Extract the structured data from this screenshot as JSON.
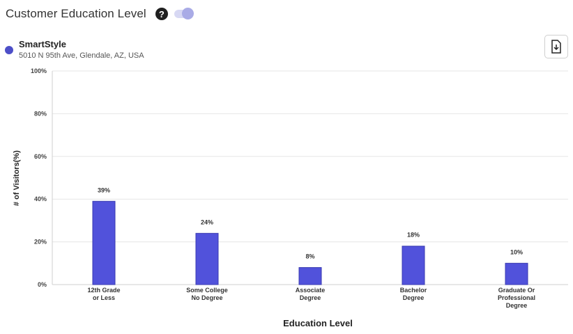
{
  "header": {
    "title": "Customer Education Level",
    "help_icon": "help-circle-icon",
    "toggle_state": "on"
  },
  "store": {
    "name": "SmartStyle",
    "address": "5010 N 95th Ave, Glendale, AZ, USA",
    "dot_color": "#4d4fc8"
  },
  "download_icon": "download-file-icon",
  "chart_data": {
    "type": "bar",
    "categories": [
      [
        "12th Grade",
        "or Less"
      ],
      [
        "Some College",
        "No Degree"
      ],
      [
        "Associate",
        "Degree"
      ],
      [
        "Bachelor",
        "Degree"
      ],
      [
        "Graduate Or",
        "Professional",
        "Degree"
      ]
    ],
    "values": [
      39,
      24,
      8,
      18,
      10
    ],
    "data_labels": [
      "39%",
      "24%",
      "8%",
      "18%",
      "10%"
    ],
    "xlabel": "Education Level",
    "ylabel": "# of Visitors(%)",
    "ylim": [
      0,
      100
    ],
    "yticks": [
      {
        "value": 0,
        "label": "0%"
      },
      {
        "value": 20,
        "label": "20%"
      },
      {
        "value": 40,
        "label": "40%"
      },
      {
        "value": 60,
        "label": "60%"
      },
      {
        "value": 80,
        "label": "80%"
      },
      {
        "value": 100,
        "label": "100%"
      }
    ],
    "grid": true,
    "bar_color": "#5152db",
    "bar_border_color": "#3a3bb0"
  }
}
